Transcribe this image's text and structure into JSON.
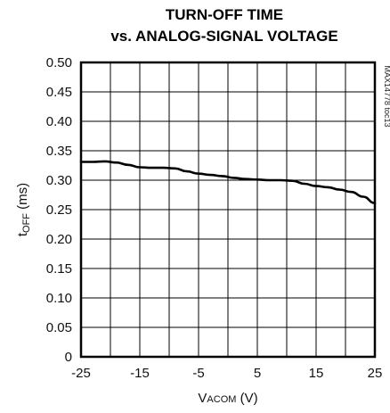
{
  "chart_data": {
    "type": "line",
    "title_line1": "TURN-OFF TIME",
    "title_line2": "vs. ANALOG-SIGNAL VOLTAGE",
    "ylabel_main": "t",
    "ylabel_sub": "OFF",
    "ylabel_unit": " (ms)",
    "xlabel_main": "V",
    "xlabel_sub": "ACOM",
    "xlabel_unit": " (V)",
    "figure_code": "MAX14778 toc13",
    "xlim": [
      -25,
      25
    ],
    "ylim": [
      0,
      0.5
    ],
    "x_ticks": [
      -25,
      -15,
      -5,
      5,
      15,
      25
    ],
    "x_tick_labels": [
      "-25",
      "-15",
      "-5",
      "5",
      "15",
      "25"
    ],
    "x_grid": [
      -25,
      -20,
      -15,
      -10,
      -5,
      0,
      5,
      10,
      15,
      20,
      25
    ],
    "y_ticks": [
      0,
      0.05,
      0.1,
      0.15,
      0.2,
      0.25,
      0.3,
      0.35,
      0.4,
      0.45,
      0.5
    ],
    "y_tick_labels": [
      "0",
      "0.05",
      "0.10",
      "0.15",
      "0.20",
      "0.25",
      "0.30",
      "0.35",
      "0.40",
      "0.45",
      "0.50"
    ],
    "grid": true,
    "series": [
      {
        "x": [
          -25,
          -23,
          -21,
          -19,
          -17,
          -15,
          -13,
          -11,
          -9,
          -7,
          -5,
          -3,
          -1,
          1,
          3,
          5,
          7,
          9,
          11,
          13,
          15,
          17,
          19,
          21,
          23,
          25
        ],
        "y": [
          0.331,
          0.331,
          0.332,
          0.33,
          0.326,
          0.322,
          0.321,
          0.321,
          0.32,
          0.315,
          0.311,
          0.309,
          0.307,
          0.304,
          0.302,
          0.301,
          0.3,
          0.3,
          0.299,
          0.294,
          0.29,
          0.288,
          0.284,
          0.28,
          0.272,
          0.261
        ]
      }
    ]
  }
}
